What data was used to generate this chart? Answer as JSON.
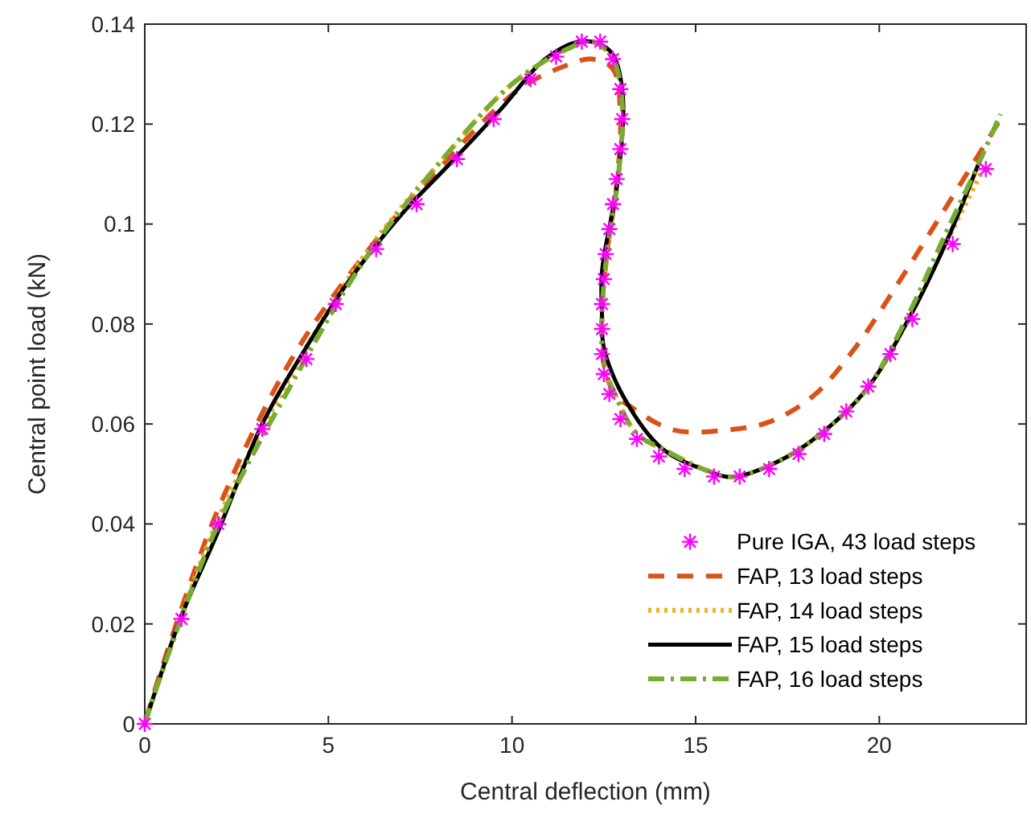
{
  "chart_data": {
    "type": "line",
    "xlabel": "Central deflection (mm)",
    "ylabel": "Central point load (kN)",
    "xlim": [
      0,
      24
    ],
    "ylim": [
      0,
      0.14
    ],
    "xticks": [
      0,
      5,
      10,
      15,
      20
    ],
    "yticks": [
      0,
      0.02,
      0.04,
      0.06,
      0.08,
      0.1,
      0.12,
      0.14
    ],
    "grid": false,
    "legend": "bottom right",
    "series": [
      {
        "name": "Pure IGA, 43 load steps",
        "type": "scatter",
        "marker": "cross",
        "color": "#ff00ff",
        "x": [
          0,
          1,
          2,
          3.2,
          4.4,
          5.2,
          6.3,
          7.4,
          8.5,
          9.5,
          10.5,
          11.2,
          11.9,
          12.4,
          12.75,
          12.95,
          13,
          12.95,
          12.85,
          12.75,
          12.65,
          12.55,
          12.5,
          12.45,
          12.45,
          12.45,
          12.5,
          12.65,
          12.95,
          13.4,
          14,
          14.7,
          15.5,
          16.2,
          17,
          17.8,
          18.5,
          19.1,
          19.7,
          20.3,
          20.9,
          22,
          22.9
        ],
        "values": [
          0,
          0.021,
          0.04,
          0.059,
          0.073,
          0.084,
          0.095,
          0.104,
          0.113,
          0.121,
          0.129,
          0.1335,
          0.1365,
          0.1365,
          0.133,
          0.127,
          0.121,
          0.115,
          0.109,
          0.104,
          0.099,
          0.094,
          0.089,
          0.084,
          0.079,
          0.074,
          0.07,
          0.066,
          0.061,
          0.057,
          0.0535,
          0.051,
          0.0495,
          0.0495,
          0.051,
          0.054,
          0.058,
          0.0625,
          0.0675,
          0.074,
          0.081,
          0.096,
          0.111
        ]
      },
      {
        "name": "FAP, 13 load steps",
        "marker": "none",
        "line_style": "dashed",
        "color": "#d95319",
        "x": [
          0,
          0.5,
          2,
          4,
          6,
          8,
          10.2,
          11.5,
          12.2,
          12.75,
          12.95,
          12.85,
          12.6,
          12.45,
          12.5,
          12.8,
          13.2,
          14.4,
          15.85,
          17,
          18.2,
          19.35,
          20.5,
          21.7,
          22.8,
          23.3
        ],
        "values": [
          0,
          0.012,
          0.043,
          0.073,
          0.094,
          0.111,
          0.127,
          0.1318,
          0.133,
          0.131,
          0.122,
          0.108,
          0.095,
          0.082,
          0.072,
          0.066,
          0.0636,
          0.0588,
          0.0588,
          0.0604,
          0.0656,
          0.0753,
          0.088,
          0.102,
          0.115,
          0.121
        ]
      },
      {
        "name": "FAP, 14 load steps",
        "marker": "none",
        "line_style": "dotted",
        "color": "#edb120",
        "x": [
          0,
          0.5,
          2,
          4,
          6,
          8,
          10,
          11.5,
          12.2,
          12.75,
          13,
          12.9,
          12.6,
          12.45,
          12.5,
          12.8,
          13.4,
          14.1,
          15.3,
          16,
          17.3,
          18.4,
          19.65,
          20.8,
          21.8,
          22.9
        ],
        "values": [
          0,
          0.011,
          0.041,
          0.07,
          0.094,
          0.112,
          0.128,
          0.135,
          0.1365,
          0.133,
          0.124,
          0.11,
          0.095,
          0.082,
          0.072,
          0.066,
          0.058,
          0.055,
          0.0507,
          0.0494,
          0.0527,
          0.058,
          0.0669,
          0.081,
          0.096,
          0.112
        ]
      },
      {
        "name": "FAP, 15 load steps",
        "marker": "none",
        "line_style": "solid",
        "color": "#000000",
        "x": [
          0,
          1,
          1.97,
          3.2,
          4.37,
          5.5,
          7,
          8.3,
          9.7,
          10.9,
          11.9,
          12.66,
          13,
          12.9,
          12.45,
          12.45,
          12.5,
          13.1,
          14.1,
          15.3,
          16,
          17.3,
          18.4,
          19.65,
          20.8,
          21.8,
          22.7
        ],
        "values": [
          0,
          0.0216,
          0.038,
          0.06,
          0.075,
          0.088,
          0.102,
          0.112,
          0.123,
          0.133,
          0.1366,
          0.1347,
          0.127,
          0.11,
          0.0905,
          0.082,
          0.0753,
          0.0646,
          0.055,
          0.0507,
          0.0494,
          0.0527,
          0.058,
          0.0669,
          0.081,
          0.096,
          0.112
        ]
      },
      {
        "name": "FAP, 16 load steps",
        "marker": "none",
        "line_style": "dashdot",
        "color": "#77ac30",
        "x": [
          0,
          0.5,
          2,
          4,
          6,
          8,
          10,
          11.5,
          12.2,
          12.75,
          13,
          12.9,
          12.6,
          12.45,
          12.5,
          12.8,
          13.4,
          14.1,
          15.3,
          16,
          17.3,
          18.4,
          19.65,
          20.8,
          21.8,
          22.7,
          23.3
        ],
        "values": [
          0,
          0.011,
          0.04,
          0.068,
          0.093,
          0.112,
          0.128,
          0.135,
          0.1365,
          0.133,
          0.124,
          0.11,
          0.095,
          0.082,
          0.072,
          0.066,
          0.058,
          0.055,
          0.0507,
          0.0494,
          0.0527,
          0.058,
          0.0669,
          0.082,
          0.098,
          0.112,
          0.122
        ]
      }
    ]
  }
}
